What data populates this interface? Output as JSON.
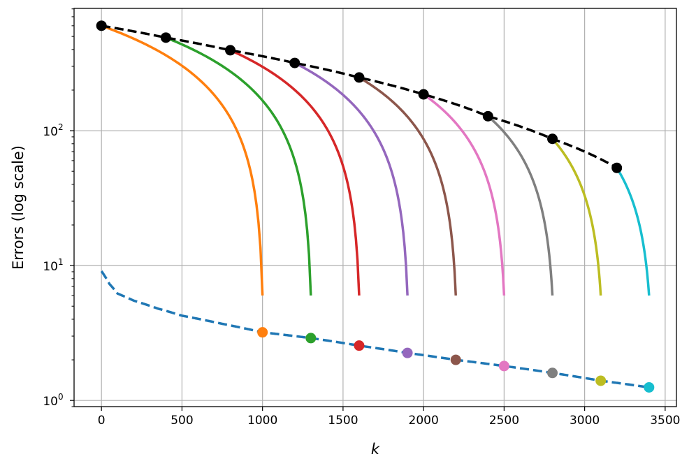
{
  "chart_data": {
    "type": "line",
    "title": "",
    "xlabel": "k",
    "ylabel": "Errors (log scale)",
    "xlim": [
      -170,
      3570
    ],
    "ylim": [
      0.9,
      807
    ],
    "yscale": "log",
    "grid": true,
    "x_ticks": [
      0,
      500,
      1000,
      1500,
      2000,
      2500,
      3000,
      3500
    ],
    "x_tick_labels": [
      "0",
      "500",
      "1000",
      "1500",
      "2000",
      "2500",
      "3000",
      "3500"
    ],
    "y_ticks": [
      1,
      10,
      100
    ],
    "y_tick_labels": [
      {
        "base": "10",
        "exp": "0"
      },
      {
        "base": "10",
        "exp": "1"
      },
      {
        "base": "10",
        "exp": "2"
      }
    ],
    "series": [
      {
        "color": "#000000",
        "style": "dashed",
        "markers": true,
        "points": [
          [
            0,
            600
          ],
          [
            400,
            490
          ],
          [
            800,
            395
          ],
          [
            1200,
            318
          ],
          [
            1600,
            248
          ],
          [
            2000,
            186
          ],
          [
            2400,
            128
          ],
          [
            2800,
            87
          ],
          [
            3200,
            53
          ]
        ]
      },
      {
        "color": "#ff7f0e",
        "style": "solid",
        "points": [
          [
            0,
            600
          ],
          [
            1000,
            6
          ]
        ]
      },
      {
        "color": "#2ca02c",
        "style": "solid",
        "points": [
          [
            400,
            490
          ],
          [
            1300,
            6
          ]
        ]
      },
      {
        "color": "#d62728",
        "style": "solid",
        "points": [
          [
            800,
            395
          ],
          [
            1600,
            6
          ]
        ]
      },
      {
        "color": "#9467bd",
        "style": "solid",
        "points": [
          [
            1200,
            318
          ],
          [
            1900,
            6
          ]
        ]
      },
      {
        "color": "#8c564b",
        "style": "solid",
        "points": [
          [
            1600,
            248
          ],
          [
            2200,
            6
          ]
        ]
      },
      {
        "color": "#e377c2",
        "style": "solid",
        "points": [
          [
            2000,
            186
          ],
          [
            2500,
            6
          ]
        ]
      },
      {
        "color": "#7f7f7f",
        "style": "solid",
        "points": [
          [
            2400,
            128
          ],
          [
            2800,
            6
          ]
        ]
      },
      {
        "color": "#bcbd22",
        "style": "solid",
        "points": [
          [
            2800,
            87
          ],
          [
            3100,
            6
          ]
        ]
      },
      {
        "color": "#17becf",
        "style": "solid",
        "points": [
          [
            3200,
            53
          ],
          [
            3400,
            6
          ]
        ]
      },
      {
        "color": "#1f77b4",
        "style": "dashed",
        "markers": false,
        "points": [
          [
            0,
            9.1
          ],
          [
            50,
            7.3
          ],
          [
            100,
            6.2
          ],
          [
            200,
            5.5
          ],
          [
            350,
            4.8
          ],
          [
            500,
            4.25
          ],
          [
            750,
            3.7
          ],
          [
            1000,
            3.2
          ],
          [
            1300,
            2.9
          ],
          [
            1600,
            2.55
          ],
          [
            1900,
            2.25
          ],
          [
            2200,
            2.0
          ],
          [
            2500,
            1.8
          ],
          [
            2800,
            1.6
          ],
          [
            3100,
            1.4
          ],
          [
            3400,
            1.25
          ]
        ]
      }
    ],
    "colored_markers": [
      {
        "k": 1000,
        "value": 3.2,
        "color": "#ff7f0e"
      },
      {
        "k": 1300,
        "value": 2.9,
        "color": "#2ca02c"
      },
      {
        "k": 1600,
        "value": 2.55,
        "color": "#d62728"
      },
      {
        "k": 1900,
        "value": 2.25,
        "color": "#9467bd"
      },
      {
        "k": 2200,
        "value": 2.0,
        "color": "#8c564b"
      },
      {
        "k": 2500,
        "value": 1.8,
        "color": "#e377c2"
      },
      {
        "k": 2800,
        "value": 1.6,
        "color": "#7f7f7f"
      },
      {
        "k": 3100,
        "value": 1.4,
        "color": "#bcbd22"
      },
      {
        "k": 3400,
        "value": 1.25,
        "color": "#17becf"
      }
    ]
  }
}
